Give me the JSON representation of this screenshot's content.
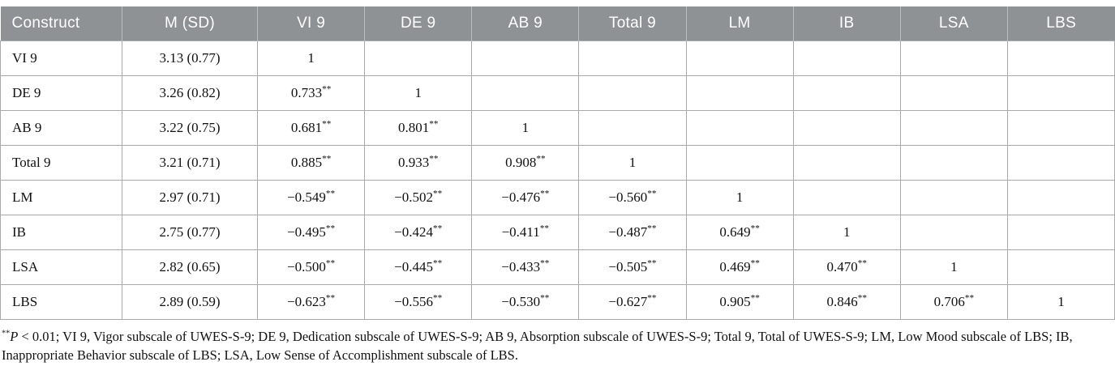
{
  "table": {
    "headers": [
      "Construct",
      "M (SD)",
      "VI 9",
      "DE 9",
      "AB 9",
      "Total 9",
      "LM",
      "IB",
      "LSA",
      "LBS"
    ],
    "rows": [
      {
        "construct": "VI 9",
        "m_sd": "3.13 (0.77)",
        "values": [
          "1",
          "",
          "",
          "",
          "",
          "",
          "",
          ""
        ]
      },
      {
        "construct": "DE 9",
        "m_sd": "3.26 (0.82)",
        "values": [
          "0.733**",
          "1",
          "",
          "",
          "",
          "",
          "",
          ""
        ]
      },
      {
        "construct": "AB 9",
        "m_sd": "3.22 (0.75)",
        "values": [
          "0.681**",
          "0.801**",
          "1",
          "",
          "",
          "",
          "",
          ""
        ]
      },
      {
        "construct": "Total 9",
        "m_sd": "3.21 (0.71)",
        "values": [
          "0.885**",
          "0.933**",
          "0.908**",
          "1",
          "",
          "",
          "",
          ""
        ]
      },
      {
        "construct": "LM",
        "m_sd": "2.97 (0.71)",
        "values": [
          "−0.549**",
          "−0.502**",
          "−0.476**",
          "−0.560**",
          "1",
          "",
          "",
          ""
        ]
      },
      {
        "construct": "IB",
        "m_sd": "2.75 (0.77)",
        "values": [
          "−0.495**",
          "−0.424**",
          "−0.411**",
          "−0.487**",
          "0.649**",
          "1",
          "",
          ""
        ]
      },
      {
        "construct": "LSA",
        "m_sd": "2.82 (0.65)",
        "values": [
          "−0.500**",
          "−0.445**",
          "−0.433**",
          "−0.505**",
          "0.469**",
          "0.470**",
          "1",
          ""
        ]
      },
      {
        "construct": "LBS",
        "m_sd": "2.89 (0.59)",
        "values": [
          "−0.623**",
          "−0.556**",
          "−0.530**",
          "−0.627**",
          "0.905**",
          "0.846**",
          "0.706**",
          "1"
        ]
      }
    ]
  },
  "footnote": {
    "sup": "**",
    "italic": "P",
    "rest": " < 0.01; VI 9, Vigor subscale of UWES-S-9; DE 9, Dedication subscale of UWES-S-9; AB 9, Absorption subscale of UWES-S-9; Total 9, Total of UWES-S-9; LM, Low Mood subscale of LBS; IB, Inappropriate Behavior subscale of LBS; LSA, Low Sense of Accomplishment subscale of LBS."
  },
  "colors": {
    "header_bg": "#8f9295",
    "header_text": "#ffffff",
    "border": "#a9a9a9"
  }
}
